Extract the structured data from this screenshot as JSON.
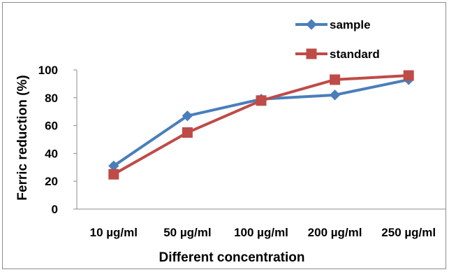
{
  "chart_data": {
    "type": "line",
    "categories": [
      "10 µg/ml",
      "50 µg/ml",
      "100 µg/ml",
      "200 µg/ml",
      "250 µg/ml"
    ],
    "series": [
      {
        "name": "sample",
        "values": [
          31,
          67,
          79,
          82,
          93
        ],
        "color": "#4a7ebb",
        "marker": "diamond"
      },
      {
        "name": "standard",
        "values": [
          25,
          55,
          78,
          93,
          96
        ],
        "color": "#be4b48",
        "marker": "square"
      }
    ],
    "title": "",
    "xlabel": "Different concentration",
    "ylabel": "Ferric  reduction (%)",
    "ylim": [
      0,
      100
    ],
    "yticks": [
      0,
      20,
      40,
      60,
      80,
      100
    ],
    "grid": false,
    "legend": "top-right"
  }
}
